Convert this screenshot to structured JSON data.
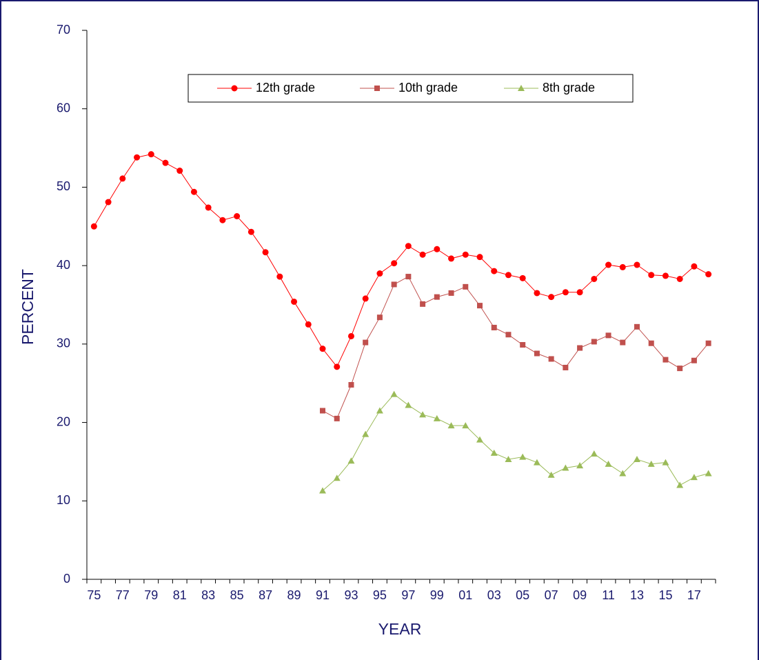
{
  "chart_data": {
    "type": "line",
    "xlabel": "YEAR",
    "ylabel": "PERCENT",
    "categories": [
      "75",
      null,
      "77",
      null,
      "79",
      null,
      "81",
      null,
      "83",
      null,
      "85",
      null,
      "87",
      null,
      "89",
      null,
      "91",
      null,
      "93",
      null,
      "95",
      null,
      "97",
      null,
      "99",
      null,
      "01",
      null,
      "03",
      null,
      "05",
      null,
      "07",
      null,
      "09",
      null,
      "11",
      null,
      "13",
      null,
      "15",
      null,
      "17",
      null
    ],
    "series": [
      {
        "name": "12th grade",
        "color": "#ff0000",
        "marker": "circle",
        "values": [
          45.0,
          48.1,
          51.1,
          53.8,
          54.2,
          53.1,
          52.1,
          49.4,
          47.4,
          45.8,
          46.3,
          44.3,
          41.7,
          38.6,
          35.4,
          32.5,
          29.4,
          27.1,
          31.0,
          35.8,
          39.0,
          40.3,
          42.5,
          41.4,
          42.1,
          40.9,
          41.4,
          41.1,
          39.3,
          38.8,
          38.4,
          36.5,
          36.0,
          36.6,
          36.6,
          38.3,
          40.1,
          39.8,
          40.1,
          38.8,
          38.7,
          38.3,
          39.9,
          38.9
        ]
      },
      {
        "name": "10th grade",
        "color": "#c0504d",
        "marker": "square",
        "values": [
          null,
          null,
          null,
          null,
          null,
          null,
          null,
          null,
          null,
          null,
          null,
          null,
          null,
          null,
          null,
          null,
          21.5,
          20.5,
          24.8,
          30.2,
          33.4,
          37.6,
          38.6,
          35.1,
          36.0,
          36.5,
          37.3,
          34.9,
          32.1,
          31.2,
          29.9,
          28.8,
          28.1,
          27.0,
          29.5,
          30.3,
          31.1,
          30.2,
          32.2,
          30.1,
          28.0,
          26.9,
          27.9,
          30.1
        ]
      },
      {
        "name": "8th grade",
        "color": "#9bbb59",
        "marker": "triangle",
        "values": [
          null,
          null,
          null,
          null,
          null,
          null,
          null,
          null,
          null,
          null,
          null,
          null,
          null,
          null,
          null,
          null,
          11.3,
          12.9,
          15.1,
          18.5,
          21.5,
          23.6,
          22.2,
          21.0,
          20.5,
          19.6,
          19.6,
          17.8,
          16.1,
          15.3,
          15.6,
          14.9,
          13.3,
          14.2,
          14.5,
          16.0,
          14.7,
          13.5,
          15.3,
          14.7,
          14.9,
          12.0,
          13.0,
          13.5
        ]
      }
    ],
    "ylim": [
      0,
      70
    ],
    "yticks": [
      0,
      10,
      20,
      30,
      40,
      50,
      60,
      70
    ],
    "grid": false,
    "legend": "top"
  }
}
